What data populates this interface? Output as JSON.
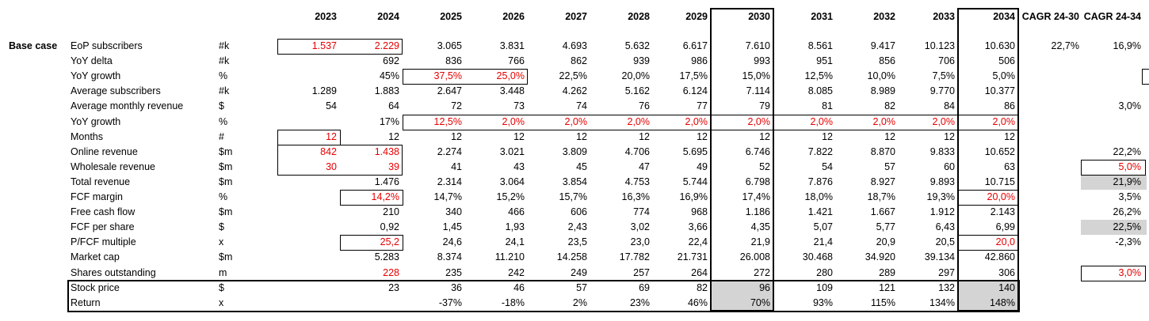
{
  "sheet": {
    "section_label": "Base case",
    "year_headers": [
      "2023",
      "2024",
      "2025",
      "2026",
      "2027",
      "2028",
      "2029",
      "2030",
      "2031",
      "2032",
      "2033",
      "2034"
    ],
    "cagr_headers": [
      "CAGR 24-30",
      "CAGR 24-34"
    ],
    "rows": [
      {
        "label": "EoP subscribers",
        "unit": "#k",
        "values": [
          "1.537",
          "2.229",
          "3.065",
          "3.831",
          "4.693",
          "5.632",
          "6.617",
          "7.610",
          "8.561",
          "9.417",
          "10.123",
          "10.630"
        ],
        "cagr": [
          "22,7%",
          "16,9%"
        ]
      },
      {
        "label": "YoY delta",
        "unit": "#k",
        "values": [
          "",
          "692",
          "836",
          "766",
          "862",
          "939",
          "986",
          "993",
          "951",
          "856",
          "706",
          "506"
        ],
        "cagr": [
          "",
          ""
        ]
      },
      {
        "label": "YoY growth",
        "unit": "%",
        "values": [
          "",
          "45%",
          "37,5%",
          "25,0%",
          "22,5%",
          "20,0%",
          "17,5%",
          "15,0%",
          "12,5%",
          "10,0%",
          "7,5%",
          "5,0%"
        ],
        "cagr": [
          "",
          ""
        ]
      },
      {
        "label": "Average subscribers",
        "unit": "#k",
        "values": [
          "1.289",
          "1.883",
          "2.647",
          "3.448",
          "4.262",
          "5.162",
          "6.124",
          "7.114",
          "8.085",
          "8.989",
          "9.770",
          "10.377"
        ],
        "cagr": [
          "",
          ""
        ]
      },
      {
        "label": "Average monthly revenue",
        "unit": "$",
        "values": [
          "54",
          "64",
          "72",
          "73",
          "74",
          "76",
          "77",
          "79",
          "81",
          "82",
          "84",
          "86"
        ],
        "cagr": [
          "",
          "3,0%"
        ]
      },
      {
        "label": "YoY growth",
        "unit": "%",
        "values": [
          "",
          "17%",
          "12,5%",
          "2,0%",
          "2,0%",
          "2,0%",
          "2,0%",
          "2,0%",
          "2,0%",
          "2,0%",
          "2,0%",
          "2,0%"
        ],
        "cagr": [
          "",
          ""
        ]
      },
      {
        "label": "Months",
        "unit": "#",
        "values": [
          "12",
          "12",
          "12",
          "12",
          "12",
          "12",
          "12",
          "12",
          "12",
          "12",
          "12",
          "12"
        ],
        "cagr": [
          "",
          ""
        ]
      },
      {
        "label": "Online revenue",
        "unit": "$m",
        "values": [
          "842",
          "1.438",
          "2.274",
          "3.021",
          "3.809",
          "4.706",
          "5.695",
          "6.746",
          "7.822",
          "8.870",
          "9.833",
          "10.652"
        ],
        "cagr": [
          "",
          "22,2%"
        ]
      },
      {
        "label": "Wholesale revenue",
        "unit": "$m",
        "values": [
          "30",
          "39",
          "41",
          "43",
          "45",
          "47",
          "49",
          "52",
          "54",
          "57",
          "60",
          "63"
        ],
        "cagr": [
          "",
          "5,0%"
        ]
      },
      {
        "label": "Total revenue",
        "unit": "$m",
        "values": [
          "",
          "1.476",
          "2.314",
          "3.064",
          "3.854",
          "4.753",
          "5.744",
          "6.798",
          "7.876",
          "8.927",
          "9.893",
          "10.715"
        ],
        "cagr": [
          "",
          "21,9%"
        ]
      },
      {
        "label": "FCF margin",
        "unit": "%",
        "values": [
          "",
          "14,2%",
          "14,7%",
          "15,2%",
          "15,7%",
          "16,3%",
          "16,9%",
          "17,4%",
          "18,0%",
          "18,7%",
          "19,3%",
          "20,0%"
        ],
        "cagr": [
          "",
          "3,5%"
        ]
      },
      {
        "label": "Free cash flow",
        "unit": "$m",
        "values": [
          "",
          "210",
          "340",
          "466",
          "606",
          "774",
          "968",
          "1.186",
          "1.421",
          "1.667",
          "1.912",
          "2.143"
        ],
        "cagr": [
          "",
          "26,2%"
        ]
      },
      {
        "label": "FCF per share",
        "unit": "$",
        "values": [
          "",
          "0,92",
          "1,45",
          "1,93",
          "2,43",
          "3,02",
          "3,66",
          "4,35",
          "5,07",
          "5,77",
          "6,43",
          "6,99"
        ],
        "cagr": [
          "",
          "22,5%"
        ]
      },
      {
        "label": "P/FCF multiple",
        "unit": "x",
        "values": [
          "",
          "25,2",
          "24,6",
          "24,1",
          "23,5",
          "23,0",
          "22,4",
          "21,9",
          "21,4",
          "20,9",
          "20,5",
          "20,0"
        ],
        "cagr": [
          "",
          "-2,3%"
        ]
      },
      {
        "label": "Market cap",
        "unit": "$m",
        "values": [
          "",
          "5.283",
          "8.374",
          "11.210",
          "14.258",
          "17.782",
          "21.731",
          "26.008",
          "30.468",
          "34.920",
          "39.134",
          "42.860"
        ],
        "cagr": [
          "",
          ""
        ]
      },
      {
        "label": "Shares outstanding",
        "unit": "m",
        "values": [
          "",
          "228",
          "235",
          "242",
          "249",
          "257",
          "264",
          "272",
          "280",
          "289",
          "297",
          "306"
        ],
        "cagr": [
          "",
          "3,0%"
        ]
      },
      {
        "label": "Stock price",
        "unit": "$",
        "values": [
          "",
          "23",
          "36",
          "46",
          "57",
          "69",
          "82",
          "96",
          "109",
          "121",
          "132",
          "140"
        ],
        "cagr": [
          "",
          ""
        ]
      },
      {
        "label": "Return",
        "unit": "x",
        "values": [
          "",
          "",
          "-37%",
          "-18%",
          "2%",
          "23%",
          "46%",
          "70%",
          "93%",
          "115%",
          "134%",
          "148%"
        ],
        "cagr": [
          "",
          ""
        ]
      }
    ]
  },
  "colors": {
    "input_red": "#e60000",
    "shade_gray": "#d4d4d4",
    "text": "#000000"
  }
}
